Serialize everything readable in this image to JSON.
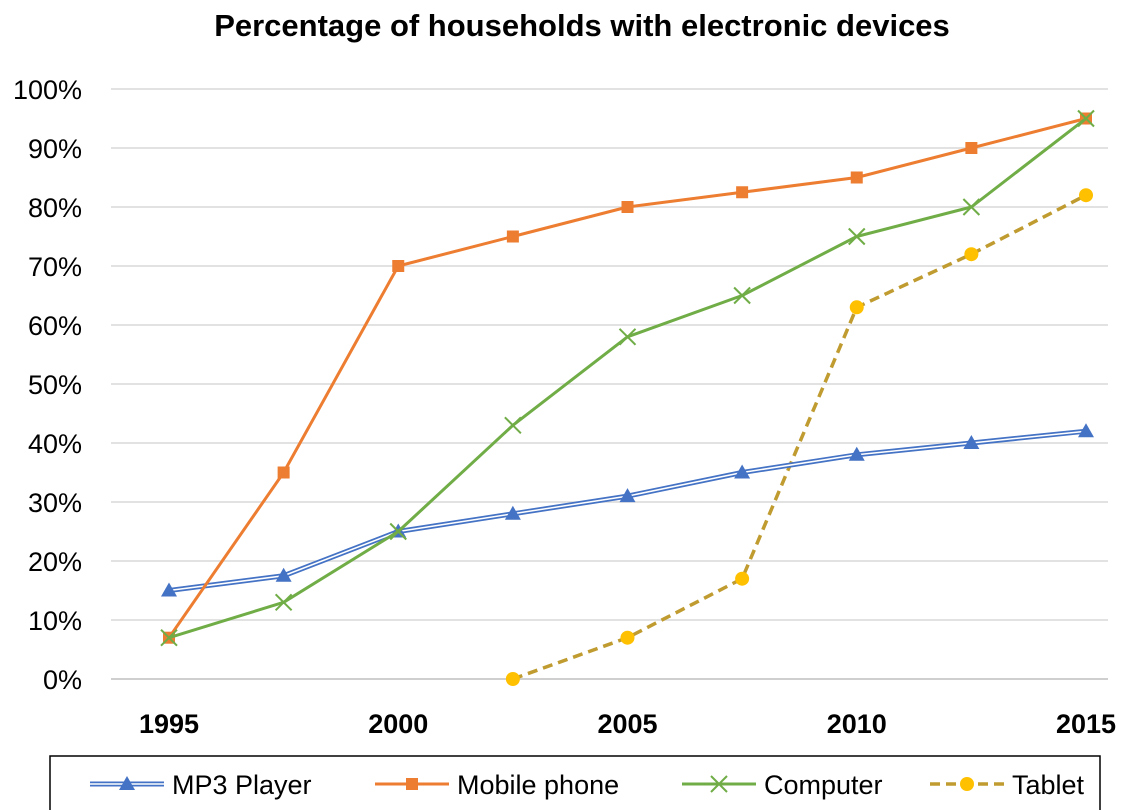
{
  "chart_data": {
    "type": "line",
    "title": "Percentage of households with electronic devices",
    "xlabel": "",
    "ylabel": "",
    "x": [
      1995,
      1997.5,
      2000,
      2002.5,
      2005,
      2007.5,
      2010,
      2012.5,
      2015
    ],
    "x_ticks": [
      "1995",
      "2000",
      "2005",
      "2010",
      "2015"
    ],
    "x_tick_values": [
      1995,
      2000,
      2005,
      2010,
      2015
    ],
    "ylim": [
      0,
      100
    ],
    "y_ticks": [
      "0%",
      "10%",
      "20%",
      "30%",
      "40%",
      "50%",
      "60%",
      "70%",
      "80%",
      "90%",
      "100%"
    ],
    "grid": true,
    "legend_position": "bottom",
    "series": [
      {
        "name": "MP3 Player",
        "values": [
          15,
          17.5,
          25,
          28,
          31,
          35,
          38,
          40,
          42
        ],
        "color": "#4472c4",
        "marker": "triangle",
        "line_style": "double"
      },
      {
        "name": "Mobile phone",
        "values": [
          7,
          35,
          70,
          75,
          80,
          82.5,
          85,
          90,
          95
        ],
        "color": "#ed7d31",
        "marker": "square",
        "line_style": "solid"
      },
      {
        "name": "Computer",
        "values": [
          7,
          13,
          25,
          43,
          58,
          65,
          75,
          80,
          95
        ],
        "color": "#70ad47",
        "marker": "x",
        "line_style": "solid"
      },
      {
        "name": "Tablet",
        "values": [
          null,
          null,
          null,
          0,
          7,
          17,
          63,
          72,
          82
        ],
        "color": "#bf9b30",
        "marker_color": "#ffc000",
        "marker": "circle",
        "line_style": "dashed"
      }
    ]
  }
}
